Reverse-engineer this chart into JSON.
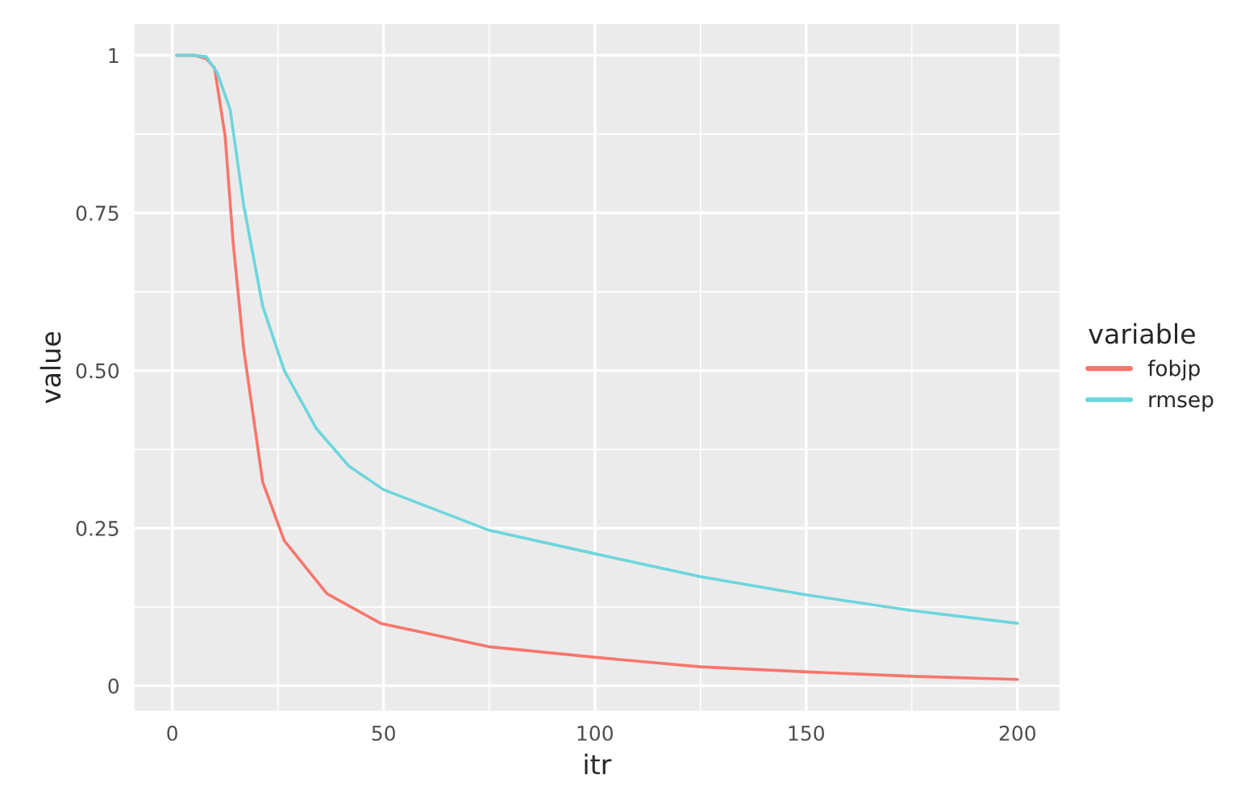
{
  "chart_data": {
    "type": "line",
    "xlabel": "itr",
    "ylabel": "value",
    "legend_title": "variable",
    "legend": "right",
    "grid": true,
    "xlim": [
      -8.95,
      209.95
    ],
    "xticks": [
      0,
      50,
      100,
      150,
      200
    ],
    "ylim": [
      -0.0395,
      1.0495
    ],
    "yticks": [
      0,
      0.25,
      {
        "value": 0.5,
        "label": "0.50"
      },
      0.75,
      1
    ],
    "series": [
      {
        "name": "fobjp",
        "color": "#F8766D",
        "x": [
          1,
          5,
          8,
          10,
          12.5,
          14.4,
          16.9,
          21.4,
          26.5,
          36.6,
          49.3,
          74.8,
          100.3,
          125,
          150.2,
          175.3,
          200
        ],
        "values": [
          1,
          1,
          0.995,
          0.98,
          0.872,
          0.703,
          0.534,
          0.323,
          0.23,
          0.146,
          0.099,
          0.062,
          0.045,
          0.03,
          0.022,
          0.015,
          0.01
        ]
      },
      {
        "name": "rmsep",
        "color": "#6DD6DC",
        "x": [
          1,
          5,
          8,
          10.6,
          13.7,
          16.9,
          21.4,
          26.5,
          34.1,
          41.7,
          50,
          74.8,
          100.3,
          125,
          150.2,
          175.3,
          200
        ],
        "values": [
          1,
          1,
          0.998,
          0.973,
          0.914,
          0.762,
          0.602,
          0.5,
          0.408,
          0.349,
          0.311,
          0.247,
          0.209,
          0.173,
          0.144,
          0.119,
          0.099
        ]
      }
    ]
  }
}
